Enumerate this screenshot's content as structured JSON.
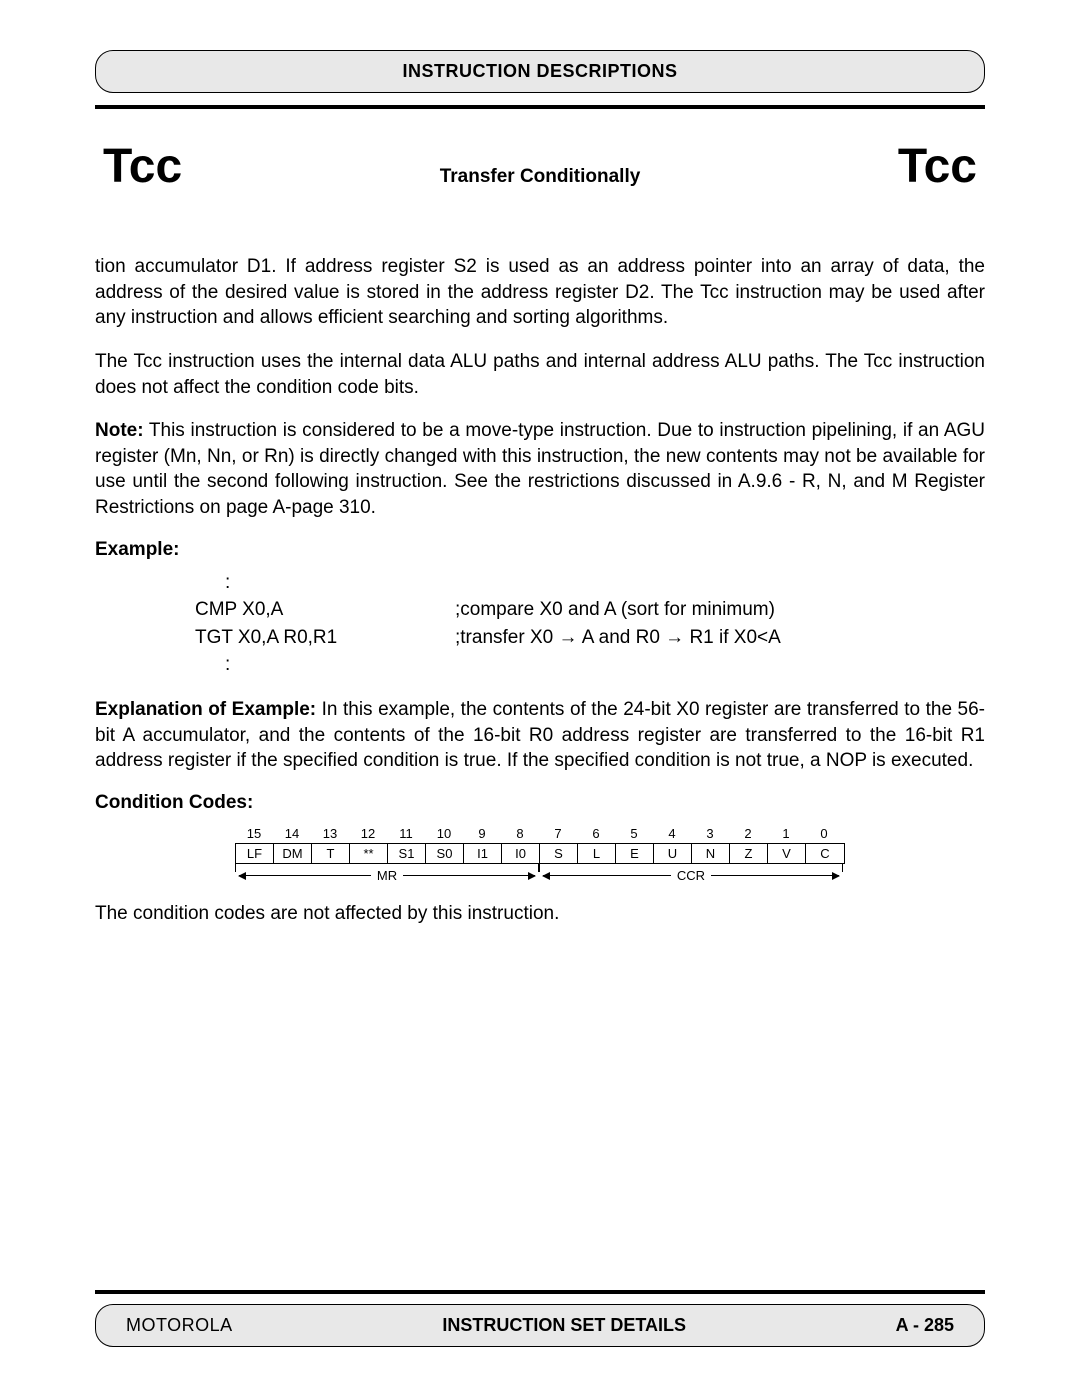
{
  "header": {
    "title": "INSTRUCTION DESCRIPTIONS"
  },
  "titleRow": {
    "left": "Tcc",
    "mid": "Transfer Conditionally",
    "right": "Tcc"
  },
  "para1": "tion accumulator D1. If address register S2 is used as an address pointer into an array of data, the address of the desired value is stored in the address register D2. The Tcc instruction may be used after any instruction and allows efficient searching and sorting algorithms.",
  "para2": "The Tcc instruction uses the internal data ALU paths and internal address ALU paths. The Tcc instruction does not affect the condition code bits.",
  "noteLabel": "Note:",
  "noteBody": " This instruction is considered to be a move-type instruction. Due to instruction pipelining, if an AGU register (Mn, Nn, or Rn) is directly changed with this instruction, the new contents may not be available for use until the second following instruction. See the restrictions discussed in A.9.6 - R, N, and M Register Restrictions on page A-page 310.",
  "exampleLabel": "Example:",
  "example": {
    "pre": ":",
    "rows": [
      {
        "code": "CMP X0,A",
        "comment": ";compare X0 and A (sort for minimum)"
      },
      {
        "code": "TGT X0,A R0,R1",
        "comment": ";transfer X0 → A and R0 → R1 if X0<A"
      }
    ],
    "post": ":"
  },
  "explLabel": "Explanation of Example:",
  "explBody": " In this example, the contents of the 24-bit X0 register are transferred to the 56-bit A accumulator, and the contents of the 16-bit R0 address register are transferred to the 16-bit R1 address register if the specified condition is true. If the specified condition is not true, a NOP is executed.",
  "ccLabel": "Condition Codes:",
  "ccTable": {
    "bitnums": [
      "15",
      "14",
      "13",
      "12",
      "11",
      "10",
      "9",
      "8",
      "7",
      "6",
      "5",
      "4",
      "3",
      "2",
      "1",
      "0"
    ],
    "cells": [
      "LF",
      "DM",
      "T",
      "**",
      "S1",
      "S0",
      "I1",
      "I0",
      "S",
      "L",
      "E",
      "U",
      "N",
      "Z",
      "V",
      "C"
    ],
    "spans": [
      {
        "label": "MR",
        "bits": 8
      },
      {
        "label": "CCR",
        "bits": 8
      }
    ],
    "cellWidth": 38
  },
  "ccNote": "The condition codes are not affected by this instruction.",
  "footer": {
    "left": "MOTOROLA",
    "mid": "INSTRUCTION SET DETAILS",
    "right": "A - 285"
  }
}
